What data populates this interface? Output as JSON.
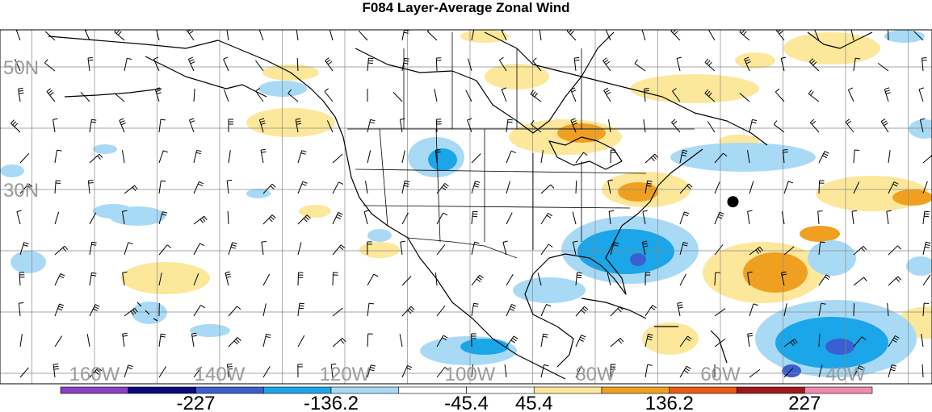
{
  "title": "F084 Layer-Average Zonal Wind",
  "lat_labels": [
    {
      "text": "50N",
      "lat": 50
    },
    {
      "text": "30N",
      "lat": 30
    }
  ],
  "lon_labels": [
    {
      "text": "160W",
      "lon": -160
    },
    {
      "text": "140W",
      "lon": -140
    },
    {
      "text": "120W",
      "lon": -120
    },
    {
      "text": "100W",
      "lon": -100
    },
    {
      "text": "80W",
      "lon": -80
    },
    {
      "text": "60W",
      "lon": -60
    },
    {
      "text": "40W",
      "lon": -40
    }
  ],
  "colorbar": {
    "colors": [
      "#8a3fc4",
      "#0a0a7a",
      "#3a5fd0",
      "#1aa6e8",
      "#a8daf6",
      "#ffffff",
      "#ffffff",
      "#fde79a",
      "#f0a020",
      "#e85a10",
      "#a01818",
      "#f08ab0"
    ],
    "labels": [
      "-227",
      "-136.2",
      "-45.4",
      "45.4",
      "136.2",
      "227"
    ]
  },
  "storm_center": {
    "lon": -58,
    "lat": 28
  },
  "colors": {
    "grid": "#888888",
    "coast": "#000000",
    "positive_light": "#fde79a",
    "positive_mid": "#f0a020",
    "negative_light": "#a8daf6",
    "negative_mid": "#1aa6e8",
    "negative_dark": "#3a5fd0"
  }
}
